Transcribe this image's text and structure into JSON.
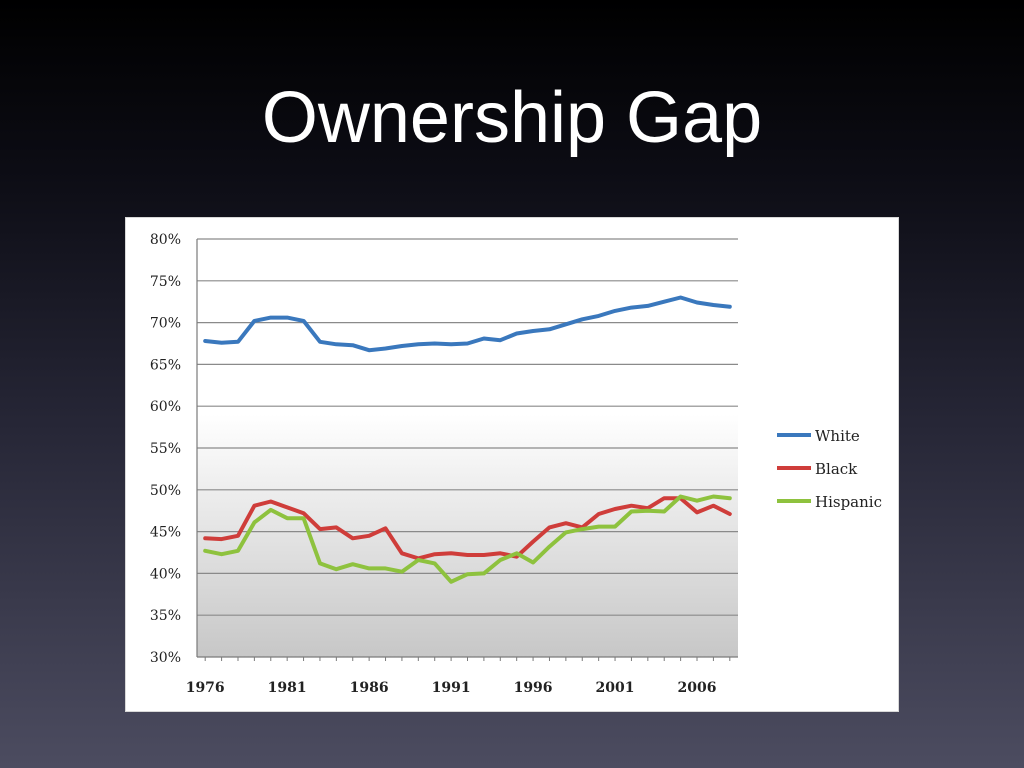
{
  "slide": {
    "title": "Ownership Gap"
  },
  "chart_data": {
    "type": "line",
    "title": "",
    "xlabel": "",
    "ylabel": "",
    "x": [
      1976,
      1977,
      1978,
      1979,
      1980,
      1981,
      1982,
      1983,
      1984,
      1985,
      1986,
      1987,
      1988,
      1989,
      1990,
      1991,
      1992,
      1993,
      1994,
      1995,
      1996,
      1997,
      1998,
      1999,
      2000,
      2001,
      2002,
      2003,
      2004,
      2005,
      2006,
      2007,
      2008
    ],
    "xlim": [
      1975.5,
      2008.5
    ],
    "ylim": [
      30,
      80
    ],
    "y_ticks": [
      30,
      35,
      40,
      45,
      50,
      55,
      60,
      65,
      70,
      75,
      80
    ],
    "y_tick_labels": [
      "30%",
      "35%",
      "40%",
      "45%",
      "50%",
      "55%",
      "60%",
      "65%",
      "70%",
      "75%",
      "80%"
    ],
    "x_ticks": [
      1976,
      1981,
      1986,
      1991,
      1996,
      2001,
      2006
    ],
    "x_tick_labels": [
      "1976",
      "1981",
      "1986",
      "1991",
      "1996",
      "2001",
      "2006"
    ],
    "grid": "horizontal",
    "legend_position": "right",
    "series": [
      {
        "name": "White",
        "color": "#3a78bd",
        "values": [
          67.8,
          67.6,
          67.7,
          70.2,
          70.6,
          70.6,
          70.2,
          67.7,
          67.4,
          67.3,
          66.7,
          66.9,
          67.2,
          67.4,
          67.5,
          67.4,
          67.5,
          68.1,
          67.9,
          68.7,
          69.0,
          69.2,
          69.8,
          70.4,
          70.8,
          71.4,
          71.8,
          72.0,
          72.5,
          73.0,
          72.4,
          72.1,
          71.9
        ]
      },
      {
        "name": "Black",
        "color": "#cf3d3a",
        "values": [
          44.2,
          44.1,
          44.5,
          48.1,
          48.6,
          47.9,
          47.2,
          45.3,
          45.5,
          44.2,
          44.5,
          45.4,
          42.4,
          41.8,
          42.3,
          42.4,
          42.2,
          42.2,
          42.4,
          42.0,
          43.8,
          45.5,
          46.0,
          45.5,
          47.1,
          47.7,
          48.1,
          47.8,
          49.0,
          49.0,
          47.3,
          48.1,
          47.1
        ]
      },
      {
        "name": "Hispanic",
        "color": "#8ec23e",
        "values": [
          42.7,
          42.3,
          42.7,
          46.1,
          47.6,
          46.6,
          46.6,
          41.2,
          40.5,
          41.1,
          40.6,
          40.6,
          40.2,
          41.6,
          41.2,
          39.0,
          39.9,
          40.0,
          41.6,
          42.4,
          41.3,
          43.2,
          44.9,
          45.3,
          45.6,
          45.6,
          47.4,
          47.5,
          47.4,
          49.2,
          48.7,
          49.2,
          49.0
        ]
      }
    ]
  }
}
